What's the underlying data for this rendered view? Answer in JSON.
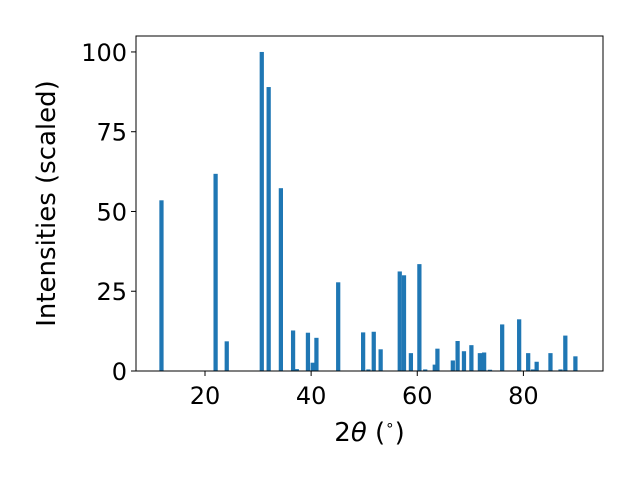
{
  "chart_data": {
    "type": "bar",
    "title": "",
    "xlabel_parts": [
      "2",
      "θ",
      " (",
      "∘",
      ")"
    ],
    "ylabel": "Intensities (scaled)",
    "xlim": [
      7,
      95
    ],
    "ylim": [
      0,
      105
    ],
    "xticks": [
      {
        "value": 20,
        "label": "20"
      },
      {
        "value": 40,
        "label": "40"
      },
      {
        "value": 60,
        "label": "60"
      },
      {
        "value": 80,
        "label": "80"
      }
    ],
    "yticks": [
      {
        "value": 0,
        "label": "0"
      },
      {
        "value": 25,
        "label": "25"
      },
      {
        "value": 50,
        "label": "50"
      },
      {
        "value": 75,
        "label": "75"
      },
      {
        "value": 100,
        "label": "100"
      }
    ],
    "bar_width": 0.8,
    "bar_color": "#1f77b4",
    "grid": false,
    "legend": "none",
    "series": [
      {
        "x": [
          11.8,
          22.0,
          24.1,
          30.7,
          32.0,
          34.3,
          36.6,
          37.3,
          39.4,
          40.3,
          41.0,
          45.1,
          49.8,
          50.8,
          51.8,
          53.1,
          56.7,
          57.5,
          58.8,
          60.4,
          61.5,
          63.3,
          63.8,
          66.7,
          67.6,
          68.8,
          70.2,
          71.8,
          72.6,
          73.7,
          76.0,
          79.2,
          80.9,
          81.8,
          82.5,
          85.1,
          87.0,
          87.9,
          89.8
        ],
        "y": [
          53.5,
          61.8,
          9.3,
          100.0,
          89.0,
          57.3,
          12.7,
          0.6,
          12.0,
          2.6,
          10.4,
          27.8,
          12.1,
          0.5,
          12.3,
          6.8,
          31.2,
          30.0,
          5.6,
          33.5,
          0.5,
          2.0,
          7.0,
          3.3,
          9.4,
          6.2,
          8.1,
          5.6,
          5.8,
          0.4,
          14.6,
          16.2,
          5.6,
          0.5,
          2.9,
          5.6,
          0.5,
          11.1,
          4.6
        ]
      }
    ]
  }
}
